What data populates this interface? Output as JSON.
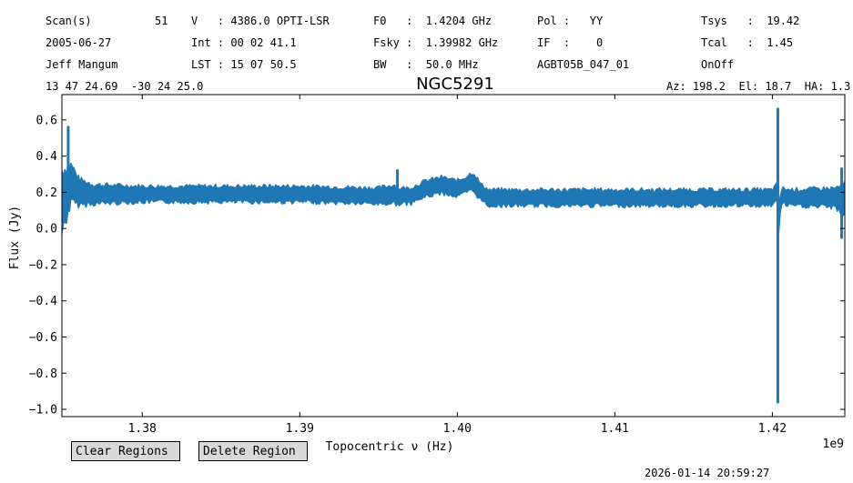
{
  "header": {
    "c1": [
      "Scan(s)",
      "2005-06-27",
      "Jeff Mangum"
    ],
    "c1b": [
      "51",
      "",
      ""
    ],
    "c2": [
      "V   : 4386.0 OPTI-LSR",
      "Int : 00 02 41.1",
      "LST : 15 07 50.5"
    ],
    "c3": [
      "F0   :  1.4204 GHz",
      "Fsky :  1.39982 GHz",
      "BW   :  50.0 MHz"
    ],
    "c4": [
      "Pol :   YY",
      "IF  :    0",
      "AGBT05B_047_01"
    ],
    "c5": [
      "Tsys   :  19.42",
      "Tcal   :  1.45",
      "OnOff"
    ],
    "coords": "13 47 24.69  -30 24 25.0",
    "azel": "Az: 198.2  El: 18.7  HA: 1.3"
  },
  "buttons": {
    "clear": "Clear Regions",
    "delete": "Delete Region"
  },
  "timestamp": "2026-01-14 20:59:27",
  "chart_data": {
    "type": "line",
    "title": "NGC5291",
    "xlabel": "Topocentric ν (Hz)",
    "ylabel": "Flux (Jy)",
    "offset_label": "1e9",
    "xlim": [
      1.3749,
      1.4246
    ],
    "ylim": [
      -1.04,
      0.74
    ],
    "xticks": [
      1.38,
      1.39,
      1.4,
      1.41,
      1.42
    ],
    "xtick_labels": [
      "1.38",
      "1.39",
      "1.40",
      "1.41",
      "1.42"
    ],
    "yticks": [
      -1.0,
      -0.8,
      -0.6,
      -0.4,
      -0.2,
      0.0,
      0.2,
      0.4,
      0.6
    ],
    "ytick_labels": [
      "−1.0",
      "−0.8",
      "−0.6",
      "−0.4",
      "−0.2",
      "0.0",
      "0.2",
      "0.4",
      "0.6"
    ],
    "color": "#1f77b4",
    "series": [
      {
        "x": [
          1.3749,
          1.3752,
          1.3755,
          1.376,
          1.377,
          1.38,
          1.385,
          1.39,
          1.395,
          1.396,
          1.3962,
          1.397,
          1.398,
          1.399,
          1.4,
          1.4005,
          1.401,
          1.4015,
          1.402,
          1.405,
          1.41,
          1.415,
          1.42,
          1.4203,
          1.4204,
          1.4205,
          1.4207,
          1.421,
          1.424,
          1.4246
        ],
        "y": [
          0.15,
          0.2,
          0.25,
          0.2,
          0.19,
          0.19,
          0.19,
          0.19,
          0.18,
          0.19,
          0.18,
          0.18,
          0.22,
          0.24,
          0.22,
          0.24,
          0.26,
          0.2,
          0.17,
          0.17,
          0.17,
          0.17,
          0.17,
          0.2,
          0.0,
          0.15,
          0.18,
          0.17,
          0.17,
          0.16
        ],
        "band_halfwidth": [
          0.2,
          0.16,
          0.12,
          0.08,
          0.06,
          0.05,
          0.05,
          0.05,
          0.05,
          0.06,
          0.05,
          0.05,
          0.05,
          0.05,
          0.05,
          0.05,
          0.06,
          0.05,
          0.05,
          0.05,
          0.05,
          0.05,
          0.05,
          0.05,
          0.05,
          0.05,
          0.05,
          0.05,
          0.06,
          0.1
        ]
      }
    ],
    "spikes": [
      {
        "x": 1.3753,
        "ymin": 0.1,
        "ymax": 0.56
      },
      {
        "x": 1.3962,
        "ymin": 0.14,
        "ymax": 0.32
      },
      {
        "x": 1.42035,
        "ymin": -0.96,
        "ymax": 0.66
      },
      {
        "x": 1.4244,
        "ymin": -0.05,
        "ymax": 0.33
      }
    ]
  }
}
